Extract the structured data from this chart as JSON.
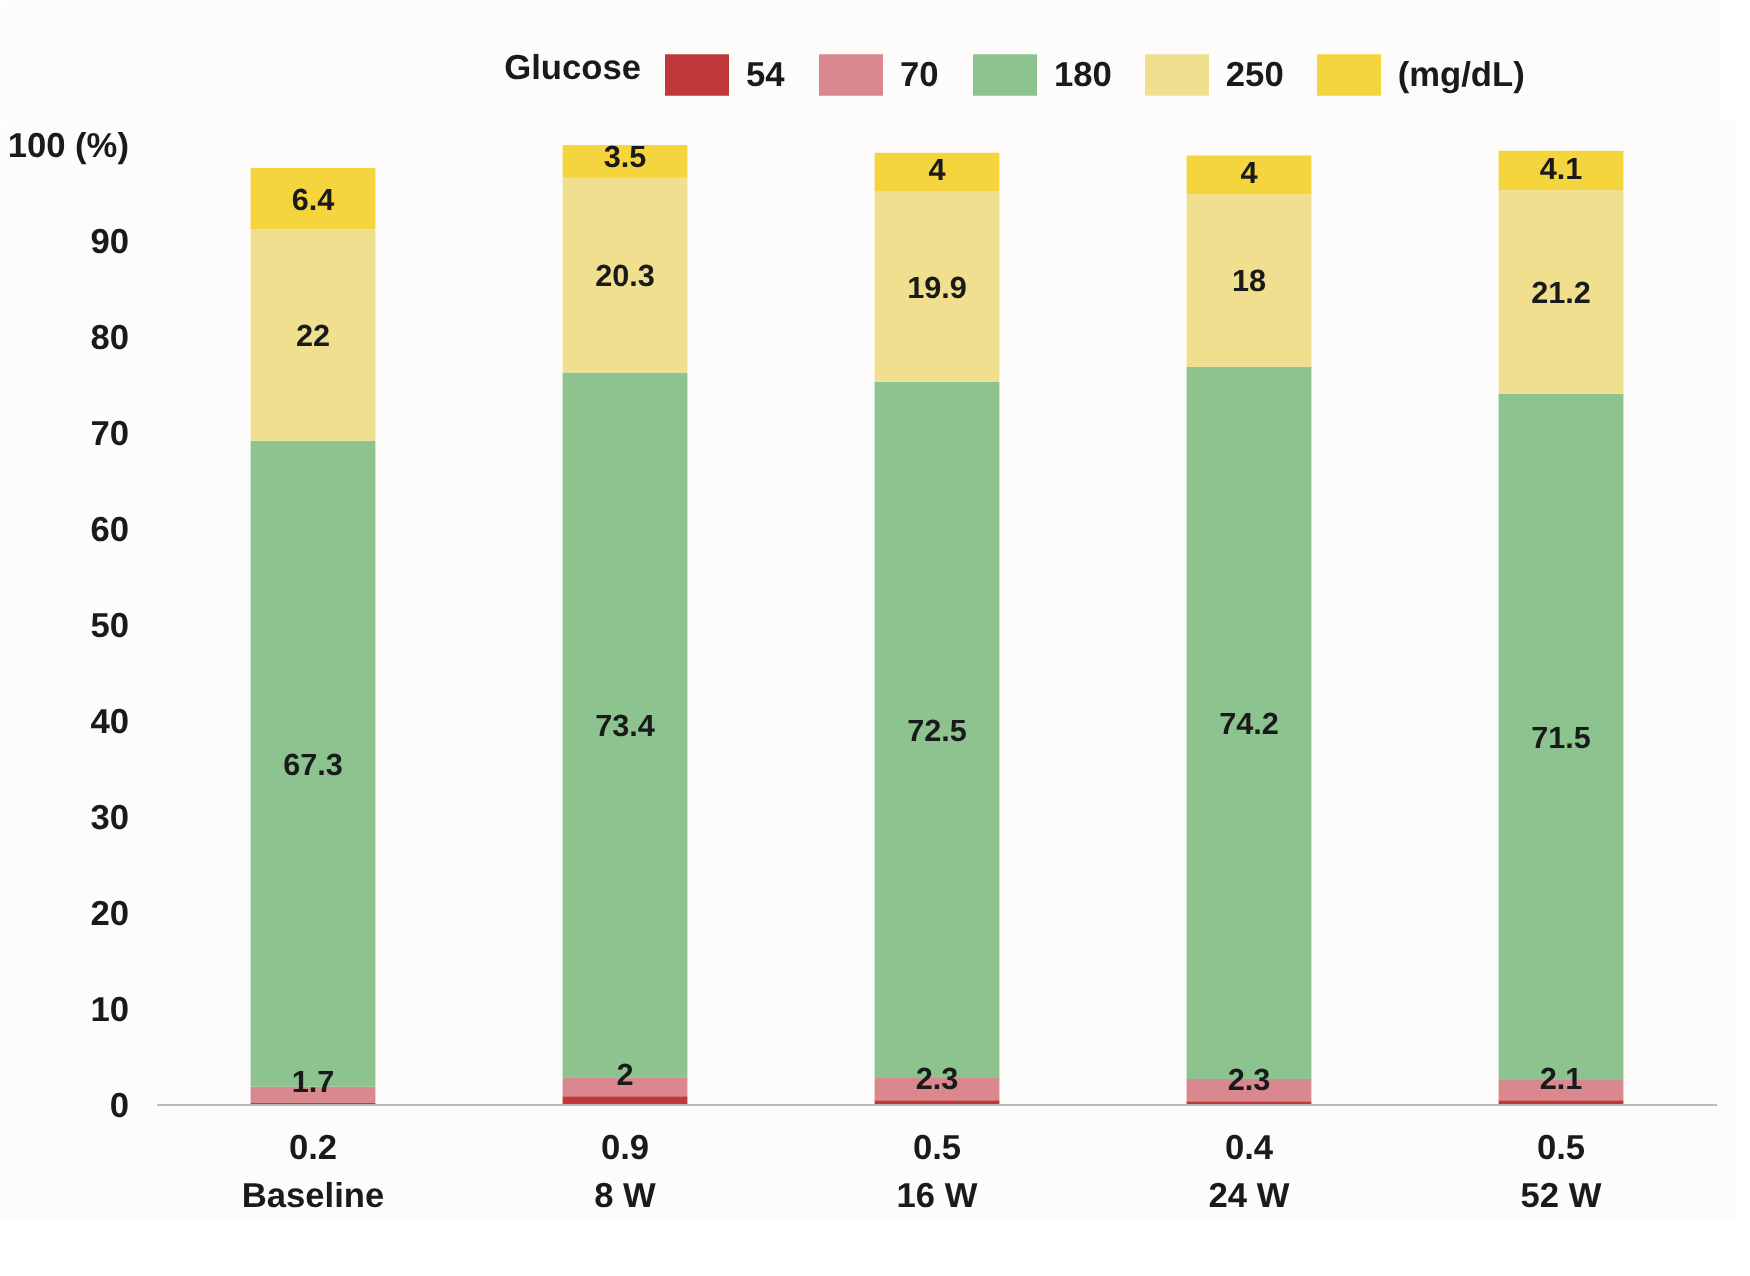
{
  "chart_data": {
    "type": "bar",
    "stacked": true,
    "categories": [
      "Baseline",
      "8 W",
      "16 W",
      "24 W",
      "52 W"
    ],
    "series": [
      {
        "name": "54",
        "color": "#c0393a",
        "values": [
          0.2,
          0.9,
          0.5,
          0.4,
          0.5
        ]
      },
      {
        "name": "70",
        "color": "#d98890",
        "values": [
          1.7,
          2,
          2.3,
          2.3,
          2.1
        ]
      },
      {
        "name": "180",
        "color": "#8cc38f",
        "values": [
          67.3,
          73.4,
          72.5,
          74.2,
          71.5
        ]
      },
      {
        "name": "250",
        "color": "#efdf8e",
        "values": [
          22,
          20.3,
          19.9,
          18,
          21.2
        ]
      },
      {
        "name": "(mg/dL)",
        "color": "#f5d53e",
        "values": [
          6.4,
          3.5,
          4,
          4,
          4.1
        ]
      }
    ],
    "data_labels": true,
    "ylim": [
      0,
      100
    ],
    "yticks": [
      0,
      10,
      20,
      30,
      40,
      50,
      60,
      70,
      80,
      90,
      {
        "value": 100,
        "label": "100 (%)"
      }
    ],
    "grid": false,
    "legend": "top",
    "legend_title": "Glucose"
  }
}
